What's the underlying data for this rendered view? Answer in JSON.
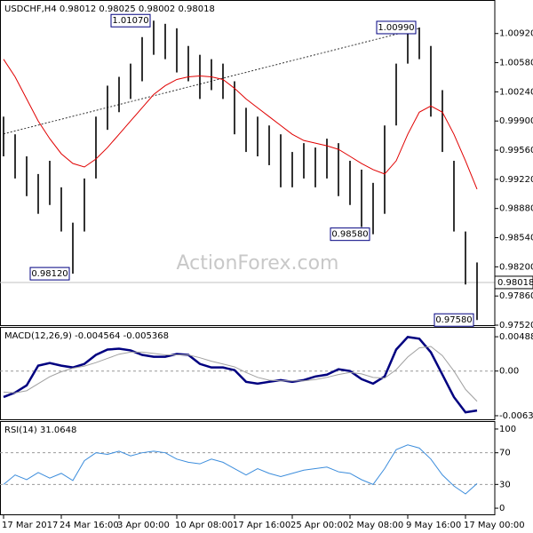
{
  "chart_data": [
    {
      "type": "ohlc",
      "title": "USDCHF,H4 0.98012 0.98025 0.98002 0.98018",
      "watermark": "ActionForex.com",
      "color": "#000000",
      "high": [
        0.99951,
        0.99745,
        0.99488,
        0.99282,
        0.99436,
        0.99127,
        0.98715,
        0.9923,
        0.99951,
        1.00312,
        1.00415,
        1.00569,
        1.00878,
        1.0107,
        1.01033,
        1.00981,
        1.00775,
        1.00672,
        1.00621,
        1.00569,
        1.00363,
        1.00054,
        0.99951,
        0.99848,
        0.99745,
        0.99539,
        0.99642,
        0.99591,
        0.99694,
        0.99642,
        0.99436,
        0.99333,
        0.99179,
        0.99848,
        1.00569,
        1.00981,
        1.0099,
        1.00775,
        1.0026,
        0.99436,
        0.98612,
        0.98251
      ],
      "low": [
        0.99488,
        0.9923,
        0.99024,
        0.98818,
        0.98921,
        0.98612,
        0.9812,
        0.98612,
        0.9923,
        0.99797,
        1.00003,
        1.00157,
        1.00363,
        1.00672,
        1.00621,
        1.00466,
        1.00363,
        1.00157,
        1.0026,
        1.00157,
        0.99745,
        0.99539,
        0.99488,
        0.99385,
        0.99127,
        0.99127,
        0.9923,
        0.99127,
        0.9923,
        0.99024,
        0.98921,
        0.98664,
        0.9858,
        0.98818,
        0.99848,
        1.00569,
        1.00621,
        0.99951,
        0.99539,
        0.98612,
        0.97994,
        0.9758
      ],
      "series": [
        {
          "color": "#e00000",
          "values": [
            1.0062,
            1.00415,
            1.00157,
            0.999,
            0.99694,
            0.99518,
            0.99405,
            0.99364,
            0.99457,
            0.99591,
            0.99745,
            0.999,
            1.00054,
            1.00209,
            1.00312,
            1.00384,
            1.00415,
            1.00425,
            1.00415,
            1.00384,
            1.00281,
            1.00157,
            1.00054,
            0.99951,
            0.99848,
            0.99745,
            0.99673,
            0.99642,
            0.99611,
            0.9957,
            0.99488,
            0.99405,
            0.99333,
            0.99282,
            0.99436,
            0.99745,
            1.00003,
            1.00075,
            1.00003,
            0.99745,
            0.99436,
            0.99106
          ]
        }
      ],
      "trendline": {
        "x": [
          0,
          36
        ],
        "values": [
          0.9975,
          1.0098
        ],
        "color": "#333333"
      },
      "annotations": [
        {
          "value": 1.0107,
          "label": "1.01070"
        },
        {
          "value": 1.0099,
          "label": "1.00990"
        },
        {
          "value": 0.9812,
          "label": "0.98120"
        },
        {
          "value": 0.9858,
          "label": "0.98580"
        },
        {
          "value": 0.9758,
          "label": "0.97580"
        }
      ],
      "current": {
        "value": 0.98018,
        "label": "0.98018"
      },
      "ylim": [
        0.9751,
        1.0129
      ],
      "yticks": [
        {
          "value": 1.0092,
          "label": "1.00920"
        },
        {
          "value": 1.0058,
          "label": "1.00580"
        },
        {
          "value": 1.0024,
          "label": "1.00240"
        },
        {
          "value": 0.999,
          "label": "0.99900"
        },
        {
          "value": 0.9956,
          "label": "0.99560"
        },
        {
          "value": 0.9922,
          "label": "0.99220"
        },
        {
          "value": 0.9888,
          "label": "0.98880"
        },
        {
          "value": 0.9854,
          "label": "0.98540"
        },
        {
          "value": 0.982,
          "label": "0.98200"
        },
        {
          "value": 0.9786,
          "label": "0.97860"
        },
        {
          "value": 0.9752,
          "label": "0.97520"
        }
      ],
      "xticks": [
        {
          "value": 0,
          "label": "17 Mar 2017"
        },
        {
          "value": 5,
          "label": "24 Mar 16:00"
        },
        {
          "value": 10,
          "label": "3 Apr 00:00"
        },
        {
          "value": 15,
          "label": "10 Apr 08:00"
        },
        {
          "value": 20,
          "label": "17 Apr 16:00"
        },
        {
          "value": 25,
          "label": "25 Apr 00:00"
        },
        {
          "value": 30,
          "label": "2 May 08:00"
        },
        {
          "value": 35,
          "label": "9 May 16:00"
        },
        {
          "value": 40,
          "label": "17 May 00:00"
        }
      ]
    },
    {
      "type": "line",
      "title": "MACD(12,26,9) -0.004564 -0.005368",
      "series": [
        {
          "color": "#000080",
          "width": 2.5,
          "values": [
            -0.0037,
            -0.00306,
            -0.00204,
            0.00077,
            0.00115,
            0.00077,
            0.00051,
            0.00102,
            0.0023,
            0.00306,
            0.00319,
            0.00294,
            0.0023,
            0.00204,
            0.00204,
            0.00243,
            0.0023,
            0.00102,
            0.00051,
            0.00051,
            0.00013,
            -0.00153,
            -0.00179,
            -0.00153,
            -0.00128,
            -0.00153,
            -0.00128,
            -0.00077,
            -0.00051,
            0.00026,
            0,
            -0.00115,
            -0.00179,
            -0.00077,
            0.00306,
            0.00485,
            0.0046,
            0.00268,
            -0.00051,
            -0.0037,
            -0.00587,
            -0.00562
          ]
        },
        {
          "color": "#a0a0a0",
          "width": 1,
          "values": [
            -0.003,
            -0.0031,
            -0.0028,
            -0.0018,
            -0.0008,
            -0.0001,
            0.0004,
            0.0007,
            0.0012,
            0.0018,
            0.0024,
            0.0027,
            0.0027,
            0.0025,
            0.0023,
            0.0023,
            0.0023,
            0.0019,
            0.0014,
            0.001,
            0.0006,
            -0.0002,
            -0.0009,
            -0.0013,
            -0.0014,
            -0.0014,
            -0.0014,
            -0.0012,
            -0.0009,
            -0.0005,
            -0.0002,
            -0.0004,
            -0.0009,
            -0.001,
            0.0002,
            0.002,
            0.0033,
            0.0035,
            0.0022,
            0,
            -0.0026,
            -0.0043
          ]
        }
      ],
      "levels": [
        0
      ],
      "ylim": [
        -0.00699,
        0.00603
      ],
      "yticks": [
        0.004883,
        {
          "value": 0,
          "label": "0.00"
        },
        -0.006354
      ]
    },
    {
      "type": "line",
      "title": "RSI(14) 31.0648",
      "series": [
        {
          "color": "#3c8ddc",
          "width": 1,
          "values": [
            30,
            42,
            36,
            45,
            38,
            44,
            35,
            60,
            70,
            68,
            72,
            66,
            70,
            72,
            70,
            62,
            58,
            56,
            62,
            58,
            50,
            42,
            50,
            44,
            40,
            44,
            48,
            50,
            52,
            46,
            44,
            36,
            30,
            50,
            74,
            80,
            76,
            62,
            42,
            28,
            18,
            31.0648
          ]
        }
      ],
      "levels": [
        70,
        30
      ],
      "ylim": [
        -8.9,
        107.8
      ],
      "yticks": [
        100,
        70,
        30,
        0
      ]
    }
  ]
}
